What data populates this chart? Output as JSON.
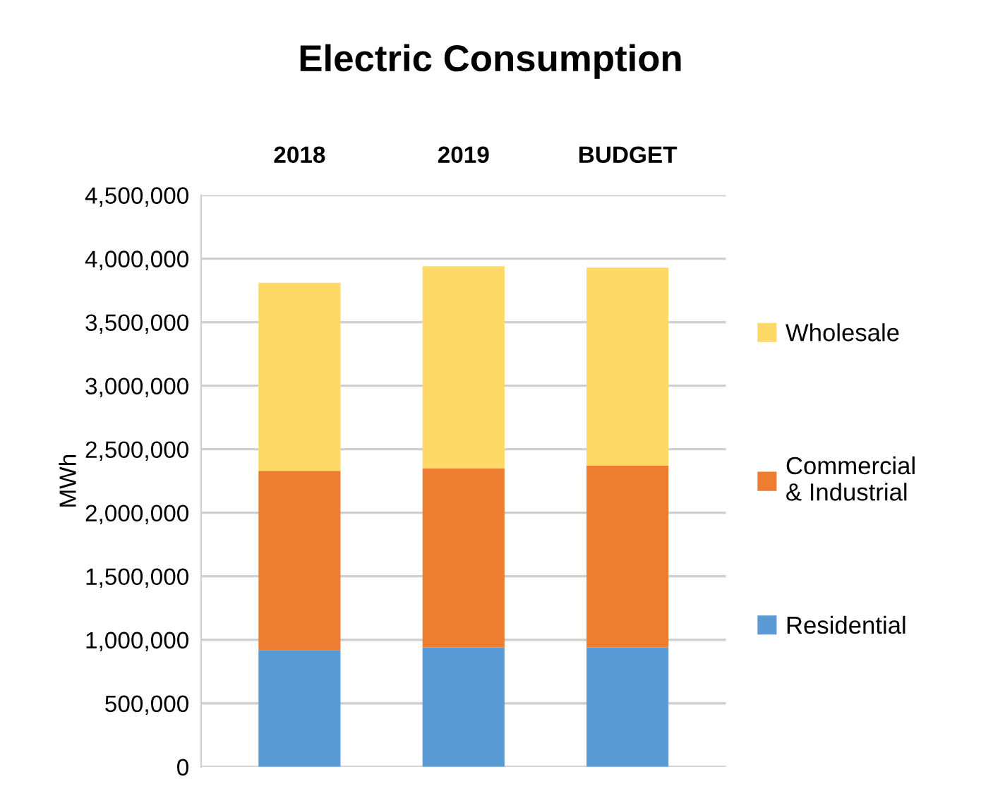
{
  "chart_data": {
    "type": "bar",
    "title": "Electric Consumption",
    "ylabel": "MWh",
    "stacked": true,
    "categories": [
      "2018",
      "2019",
      "BUDGET"
    ],
    "series": [
      {
        "name": "Residential",
        "color": "#5b9bd5",
        "values": [
          920000,
          940000,
          940000
        ]
      },
      {
        "name": "Commercial\n& Industrial",
        "color": "#ed7d31",
        "values": [
          1410000,
          1410000,
          1430000
        ]
      },
      {
        "name": "Wholesale",
        "color": "#ffd966",
        "values": [
          1480000,
          1590000,
          1560000
        ]
      }
    ],
    "ylim": [
      0,
      4500000
    ],
    "yticks": [
      0,
      {
        "value": 500000,
        "label": "500,000"
      },
      {
        "value": 1000000,
        "label": "1,000,000"
      },
      {
        "value": 1500000,
        "label": "1,500,000"
      },
      {
        "value": 2000000,
        "label": "2,000,000"
      },
      {
        "value": 2500000,
        "label": "2,500,000"
      },
      {
        "value": 3000000,
        "label": "3,000,000"
      },
      {
        "value": 3500000,
        "label": "3,500,000"
      },
      {
        "value": 4000000,
        "label": "4,000,000"
      },
      {
        "value": 4500000,
        "label": "4,500,000"
      }
    ],
    "grid": "y",
    "legend": "right"
  }
}
